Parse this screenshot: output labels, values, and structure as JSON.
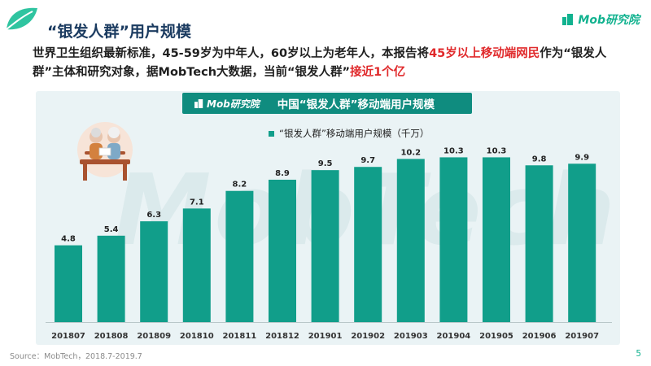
{
  "header": {
    "title": "“银发人群”用户规模",
    "brand": "Mob研究院"
  },
  "headline": {
    "text_before": "世界卫生组织最新标准，45-59岁为中年人，60岁以上为老年人，本报告将",
    "highlight_1": "45岁以上移动端网民",
    "text_middle": "作为“银发人群”主体和研究对象，据MobTech大数据，当前“银发人群”",
    "highlight_2": "接近1个亿"
  },
  "panel": {
    "brand": "Mob研究院",
    "title": "中国“银发人群”移动端用户规模"
  },
  "watermark": "MobTech",
  "footer": {
    "source": "Source：MobTech，2018.7-2019.7",
    "page": "5"
  },
  "colors": {
    "accent": "#11b28f",
    "bar": "#119e8a",
    "panel_header": "#0f8c7f",
    "highlight": "#e0292b",
    "title": "#1b3b60"
  },
  "chart_data": {
    "type": "bar",
    "categories": [
      "201807",
      "201808",
      "201809",
      "201810",
      "201811",
      "201812",
      "201901",
      "201902",
      "201903",
      "201904",
      "201905",
      "201906",
      "201907"
    ],
    "series": [
      {
        "name": "“银发人群”移动端用户规模（千万）",
        "values": [
          4.8,
          5.4,
          6.3,
          7.1,
          8.2,
          8.9,
          9.5,
          9.7,
          10.2,
          10.3,
          10.3,
          9.8,
          9.9
        ]
      }
    ],
    "ylim": [
      0,
      12
    ],
    "data_labels": true,
    "grid": false,
    "legend_position": "top-center"
  }
}
